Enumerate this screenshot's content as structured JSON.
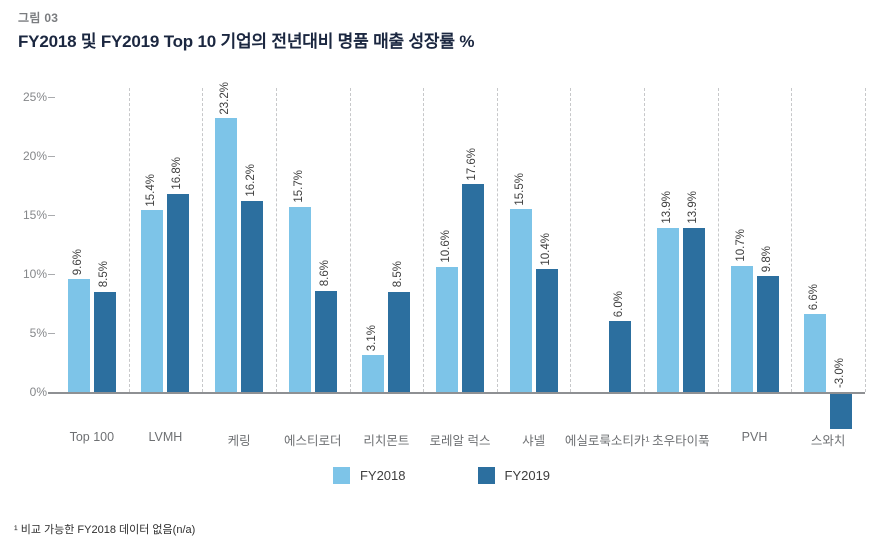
{
  "header": {
    "figure_label": "그림 03",
    "title": "FY2018 및 FY2019  Top 10 기업의 전년대비 명품 매출 성장률 %"
  },
  "chart_data": {
    "type": "bar",
    "title": "FY2018 및 FY2019 Top 10 기업의 전년대비 명품 매출 성장률 %",
    "categories": [
      "Top 100",
      "LVMH",
      "케링",
      "에스티로더",
      "리치몬트",
      "로레알 럭스",
      "샤넬",
      "에실로룩소티카¹",
      "초우타이푹",
      "PVH",
      "스와치"
    ],
    "series": [
      {
        "name": "FY2018",
        "color": "#7DC4E8",
        "values": [
          9.6,
          15.4,
          23.2,
          15.7,
          3.1,
          10.6,
          15.5,
          null,
          13.9,
          10.7,
          6.6
        ]
      },
      {
        "name": "FY2019",
        "color": "#2C6F9F",
        "values": [
          8.5,
          16.8,
          16.2,
          8.6,
          8.5,
          17.6,
          10.4,
          6.0,
          13.9,
          9.8,
          -3.0
        ]
      }
    ],
    "xlabel": "",
    "ylabel": "",
    "y_ticks": [
      0,
      5,
      10,
      15,
      20,
      25
    ],
    "y_tick_labels": [
      "0%",
      "5%",
      "10%",
      "15%",
      "20%",
      "25%"
    ],
    "ylim": [
      -4.5,
      26
    ],
    "value_label_format": "{value}%",
    "grid": "vertical dashed separators between groups, solid zero baseline",
    "legend_position": "bottom",
    "missing_data_note": "에실로룩소티카 FY2018 = n/a"
  },
  "legend": {
    "items": [
      {
        "label": "FY2018",
        "color": "#7DC4E8"
      },
      {
        "label": "FY2019",
        "color": "#2C6F9F"
      }
    ]
  },
  "footnote": "¹ 비교 가능한 FY2018 데이터 없음(n/a)"
}
